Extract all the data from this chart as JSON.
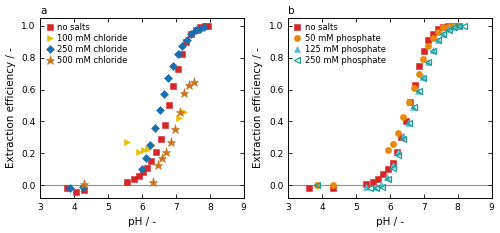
{
  "title_a": "a",
  "title_b": "b",
  "xlabel": "pH / -",
  "ylabel": "Extraction efficiency / -",
  "xlim": [
    3,
    9
  ],
  "ylim": [
    -0.08,
    1.05
  ],
  "xticks": [
    3,
    4,
    5,
    6,
    7,
    8,
    9
  ],
  "yticks": [
    0.0,
    0.2,
    0.4,
    0.6,
    0.8,
    1.0
  ],
  "panel_a": {
    "no_salts": {
      "color": "#d62728",
      "marker": "s",
      "fillstyle": "full",
      "label": "no salts",
      "pH": [
        3.78,
        4.05,
        4.3,
        5.55,
        5.75,
        5.9,
        6.02,
        6.15,
        6.28,
        6.42,
        6.55,
        6.68,
        6.8,
        6.92,
        7.05,
        7.18,
        7.3,
        7.45,
        7.58,
        7.72,
        7.85,
        7.95
      ],
      "E": [
        -0.02,
        -0.04,
        -0.03,
        0.02,
        0.04,
        0.06,
        0.08,
        0.11,
        0.15,
        0.21,
        0.29,
        0.38,
        0.5,
        0.62,
        0.73,
        0.82,
        0.9,
        0.95,
        0.97,
        0.99,
        1.0,
        1.0
      ]
    },
    "100mM_chloride": {
      "color": "#e8c000",
      "marker": ">",
      "fillstyle": "full",
      "label": "100 mM chloride",
      "pH": [
        5.55,
        5.92,
        6.05,
        6.18,
        6.3,
        7.1,
        7.25
      ],
      "E": [
        0.27,
        0.21,
        0.22,
        0.23,
        0.25,
        0.42,
        0.46
      ]
    },
    "250mM_chloride": {
      "color": "#1a6faf",
      "marker": "D",
      "fillstyle": "full",
      "label": "250 mM chloride",
      "pH": [
        3.88,
        4.25,
        6.0,
        6.12,
        6.25,
        6.38,
        6.52,
        6.65,
        6.78,
        6.92,
        7.05,
        7.18,
        7.32,
        7.45,
        7.58,
        7.7,
        7.82
      ],
      "E": [
        -0.02,
        -0.01,
        0.1,
        0.17,
        0.25,
        0.36,
        0.47,
        0.57,
        0.67,
        0.75,
        0.82,
        0.87,
        0.91,
        0.95,
        0.97,
        0.98,
        0.99
      ]
    },
    "500mM_chloride": {
      "color": "#c87520",
      "marker": "*",
      "fillstyle": "full",
      "label": "500 mM chloride",
      "pH": [
        4.28,
        6.32,
        6.48,
        6.6,
        6.72,
        6.85,
        6.98,
        7.12,
        7.25,
        7.38,
        7.52
      ],
      "E": [
        0.01,
        0.02,
        0.13,
        0.17,
        0.21,
        0.27,
        0.35,
        0.46,
        0.58,
        0.63,
        0.65
      ]
    }
  },
  "panel_b": {
    "no_salts": {
      "color": "#d62728",
      "marker": "s",
      "fillstyle": "full",
      "label": "no salts",
      "pH": [
        3.6,
        4.32,
        5.28,
        5.5,
        5.65,
        5.8,
        5.95,
        6.08,
        6.2,
        6.33,
        6.47,
        6.6,
        6.73,
        6.87,
        7.0,
        7.13,
        7.27,
        7.42,
        7.57,
        7.72,
        7.87,
        8.0
      ],
      "E": [
        -0.02,
        -0.02,
        0.01,
        0.02,
        0.04,
        0.07,
        0.1,
        0.14,
        0.21,
        0.3,
        0.4,
        0.52,
        0.63,
        0.75,
        0.84,
        0.91,
        0.95,
        0.98,
        0.99,
        1.0,
        1.0,
        1.0
      ]
    },
    "50mM_phosphate": {
      "color": "#e8890c",
      "marker": "o",
      "fillstyle": "full",
      "label": "50 mM phosphate",
      "pH": [
        3.85,
        4.32,
        5.95,
        6.1,
        6.25,
        6.4,
        6.55,
        6.7,
        6.85,
        6.98,
        7.12,
        7.27,
        7.42,
        7.58,
        7.73,
        7.87,
        8.02
      ],
      "E": [
        0.0,
        0.0,
        0.22,
        0.26,
        0.33,
        0.43,
        0.52,
        0.61,
        0.7,
        0.79,
        0.87,
        0.92,
        0.96,
        0.99,
        1.0,
        1.0,
        1.0
      ]
    },
    "125mM_phosphate": {
      "color": "#5bbcd6",
      "marker": "^",
      "fillstyle": "full",
      "label": "125 mM phosphate",
      "pH": [
        5.28,
        5.55,
        5.75,
        5.92,
        6.08,
        6.23,
        6.38,
        6.53,
        6.68,
        6.82,
        6.97,
        7.12,
        7.27,
        7.42,
        7.57,
        7.72,
        7.88,
        8.05
      ],
      "E": [
        -0.01,
        -0.01,
        0.01,
        0.05,
        0.13,
        0.21,
        0.31,
        0.39,
        0.49,
        0.59,
        0.68,
        0.77,
        0.85,
        0.91,
        0.95,
        0.98,
        0.99,
        1.0
      ]
    },
    "250mM_phosphate": {
      "color": "#1a9e8f",
      "marker": "4",
      "fillstyle": "full",
      "label": "250 mM phosphate",
      "pH": [
        3.85,
        5.4,
        5.6,
        5.78,
        5.95,
        6.1,
        6.25,
        6.4,
        6.55,
        6.7,
        6.85,
        6.98,
        7.12,
        7.27,
        7.42,
        7.58,
        7.73,
        7.88,
        8.05,
        8.2
      ],
      "E": [
        0.0,
        -0.02,
        -0.02,
        -0.01,
        0.04,
        0.11,
        0.19,
        0.29,
        0.39,
        0.49,
        0.59,
        0.67,
        0.77,
        0.84,
        0.91,
        0.95,
        0.97,
        0.99,
        1.0,
        1.0
      ]
    }
  },
  "hline_color": "#909090",
  "hline_y": 0.0,
  "background_color": "#ffffff",
  "figsize": [
    5.0,
    2.33
  ],
  "dpi": 100,
  "legend_fontsize": 6.0,
  "axis_fontsize": 7.5,
  "tick_fontsize": 6.5,
  "marker_size": 4.5,
  "star_size": 6.5
}
